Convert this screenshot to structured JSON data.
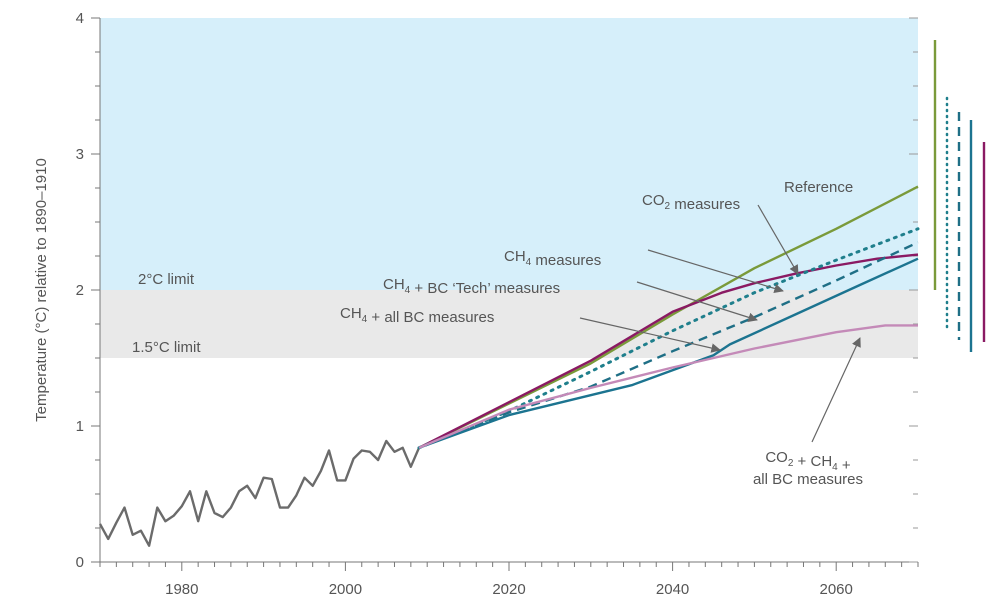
{
  "chart_data": {
    "type": "line",
    "ylabel": "Temperature (°C) relative to 1890–1910",
    "xlabel": "",
    "xlim": [
      1970,
      2070
    ],
    "ylim": [
      0,
      4
    ],
    "x_ticks": [
      "1980",
      "2000",
      "2020",
      "2040",
      "2060"
    ],
    "x_tick_values": [
      1980,
      2000,
      2020,
      2040,
      2060
    ],
    "y_ticks": [
      "0",
      "1",
      "2",
      "3",
      "4"
    ],
    "y_tick_values": [
      0,
      1,
      2,
      3,
      4
    ],
    "grid": false,
    "bands": [
      {
        "from": 2.0,
        "to": 4.0,
        "color": "#d6effa",
        "label": ""
      },
      {
        "from": 1.5,
        "to": 2.0,
        "color": "#e9e9e9",
        "label": "1.5°C limit"
      }
    ],
    "limit_labels": [
      {
        "label": "2°C limit",
        "y": 2.0
      },
      {
        "label": "1.5°C limit",
        "y": 1.5
      }
    ],
    "series": [
      {
        "id": "observed",
        "color": "#6b6b6b",
        "style": "solid",
        "x": [
          1970,
          1971,
          1972,
          1973,
          1974,
          1975,
          1976,
          1977,
          1978,
          1979,
          1980,
          1981,
          1982,
          1983,
          1984,
          1985,
          1986,
          1987,
          1988,
          1989,
          1990,
          1991,
          1992,
          1993,
          1994,
          1995,
          1996,
          1997,
          1998,
          1999,
          2000,
          2001,
          2002,
          2003,
          2004,
          2005,
          2006,
          2007,
          2008,
          2009
        ],
        "y": [
          0.28,
          0.17,
          0.29,
          0.4,
          0.2,
          0.23,
          0.12,
          0.4,
          0.3,
          0.34,
          0.41,
          0.52,
          0.3,
          0.52,
          0.36,
          0.33,
          0.4,
          0.52,
          0.56,
          0.47,
          0.62,
          0.61,
          0.4,
          0.4,
          0.49,
          0.62,
          0.56,
          0.67,
          0.82,
          0.6,
          0.6,
          0.76,
          0.82,
          0.81,
          0.75,
          0.89,
          0.81,
          0.84,
          0.7,
          0.84
        ]
      },
      {
        "id": "reference",
        "color": "#7a9a3a",
        "style": "solid",
        "x": [
          2009,
          2030,
          2040,
          2050,
          2060,
          2070
        ],
        "y": [
          0.84,
          1.46,
          1.82,
          2.16,
          2.45,
          2.76
        ]
      },
      {
        "id": "co2_measures",
        "color": "#8a1a63",
        "style": "solid",
        "x": [
          2009,
          2030,
          2040,
          2046,
          2050,
          2055,
          2060,
          2065,
          2070
        ],
        "y": [
          0.84,
          1.48,
          1.84,
          1.98,
          2.05,
          2.12,
          2.18,
          2.23,
          2.26
        ]
      },
      {
        "id": "ch4_measures",
        "color": "#1f7f8c",
        "style": "dotted",
        "x": [
          2009,
          2020,
          2030,
          2040,
          2050,
          2060,
          2070
        ],
        "y": [
          0.84,
          1.11,
          1.4,
          1.7,
          1.98,
          2.22,
          2.45
        ]
      },
      {
        "id": "ch4_bc_tech",
        "color": "#1f6f86",
        "style": "dashed",
        "x": [
          2009,
          2020,
          2030,
          2040,
          2050,
          2060,
          2070
        ],
        "y": [
          0.84,
          1.1,
          1.29,
          1.55,
          1.8,
          2.07,
          2.35
        ]
      },
      {
        "id": "ch4_all_bc",
        "color": "#1c7490",
        "style": "solid",
        "x": [
          2009,
          2020,
          2035,
          2045,
          2047,
          2055,
          2063,
          2070
        ],
        "y": [
          0.84,
          1.08,
          1.3,
          1.52,
          1.6,
          1.82,
          2.04,
          2.23
        ]
      },
      {
        "id": "co2_ch4_all_bc",
        "color": "#c48ab8",
        "style": "solid",
        "x": [
          2009,
          2020,
          2030,
          2040,
          2050,
          2060,
          2066,
          2070
        ],
        "y": [
          0.84,
          1.12,
          1.28,
          1.43,
          1.57,
          1.69,
          1.74,
          1.74
        ]
      }
    ],
    "annotations": [
      {
        "id": "reference",
        "label": "Reference",
        "lines": [
          "Reference"
        ]
      },
      {
        "id": "co2",
        "lines": [
          "CO₂ measures"
        ]
      },
      {
        "id": "ch4",
        "lines": [
          "CH₄ measures"
        ]
      },
      {
        "id": "ch4_bc_tech",
        "lines": [
          "CH₄ + BC ‘Tech’ measures"
        ]
      },
      {
        "id": "ch4_all_bc",
        "lines": [
          "CH₄ + all BC measures"
        ]
      },
      {
        "id": "co2_ch4_all_bc",
        "lines": [
          "CO₂ + CH₄ +",
          "all BC measures"
        ]
      }
    ],
    "range_bars": [
      {
        "id": "reference",
        "color": "#7a9a3a",
        "style": "solid"
      },
      {
        "id": "ch4_measures",
        "color": "#1f7f8c",
        "style": "dotted"
      },
      {
        "id": "ch4_bc_tech",
        "color": "#1f6f86",
        "style": "dashed"
      },
      {
        "id": "ch4_all_bc",
        "color": "#1c7490",
        "style": "solid"
      },
      {
        "id": "co2_measures",
        "color": "#8a1a63",
        "style": "solid"
      }
    ]
  }
}
